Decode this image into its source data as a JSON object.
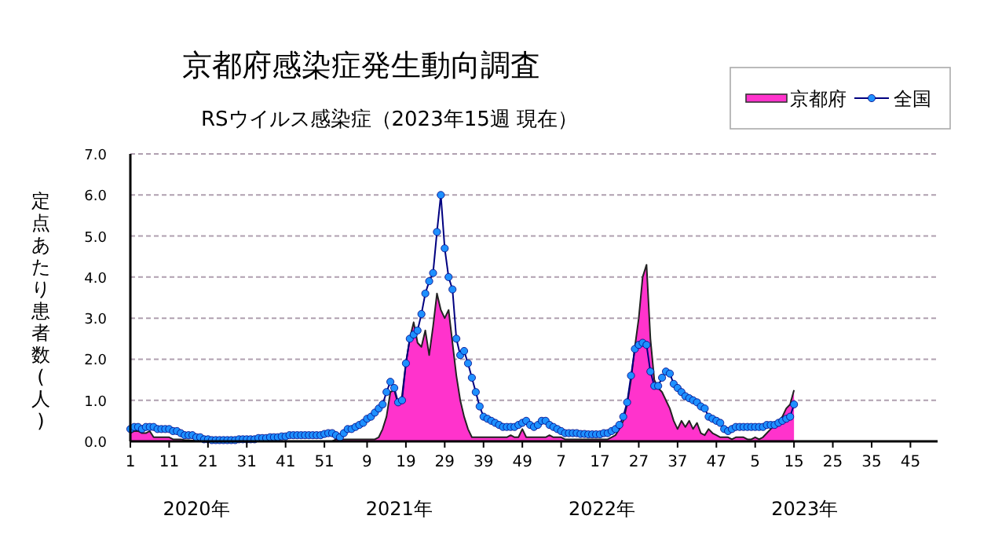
{
  "chart_data": {
    "type": "line",
    "title": "京都府感染症発生動向調査",
    "subtitle": "RSウイルス感染症（2023年15週 現在）",
    "ylabel": "定点あたり患者数(人)",
    "categories": [
      "1",
      null,
      null,
      null,
      null,
      null,
      null,
      null,
      null,
      null,
      "11",
      null,
      null,
      null,
      null,
      null,
      null,
      null,
      null,
      null,
      "21",
      null,
      null,
      null,
      null,
      null,
      null,
      null,
      null,
      null,
      "31",
      null,
      null,
      null,
      null,
      null,
      null,
      null,
      null,
      null,
      "41",
      null,
      null,
      null,
      null,
      null,
      null,
      null,
      null,
      null,
      "51",
      null,
      null,
      null,
      null,
      null,
      null,
      null,
      null,
      null,
      null,
      "9",
      null,
      null,
      null,
      null,
      null,
      null,
      null,
      null,
      null,
      "19",
      null,
      null,
      null,
      null,
      null,
      null,
      null,
      null,
      null,
      "29",
      null,
      null,
      null,
      null,
      null,
      null,
      null,
      null,
      null,
      "39",
      null,
      null,
      null,
      null,
      null,
      null,
      null,
      null,
      null,
      "49",
      null,
      null,
      null,
      null,
      null,
      null,
      null,
      null,
      null,
      "7",
      null,
      null,
      null,
      null,
      null,
      null,
      null,
      null,
      null,
      "17",
      null,
      null,
      null,
      null,
      null,
      null,
      null,
      null,
      null,
      "27",
      null,
      null,
      null,
      null,
      null,
      null,
      null,
      null,
      null,
      "37",
      null,
      null,
      null,
      null,
      null,
      null,
      null,
      null,
      null,
      "47",
      null,
      null,
      null,
      null,
      null,
      null,
      null,
      null,
      null,
      "5",
      null,
      null,
      null,
      null,
      null,
      null,
      null,
      null,
      null,
      "15",
      null,
      null,
      null,
      null,
      null,
      null,
      null,
      null,
      null,
      "25",
      null,
      null,
      null,
      null,
      null,
      null,
      null,
      null,
      null,
      "35",
      null,
      null,
      null,
      null,
      null,
      null,
      null,
      null,
      null,
      "45",
      null,
      null,
      null,
      null,
      null,
      null,
      null
    ],
    "ylim": [
      0,
      7
    ],
    "yticks": [
      {
        "value": 0,
        "label": "0.0"
      },
      {
        "value": 1,
        "label": "1.0"
      },
      {
        "value": 2,
        "label": "2.0"
      },
      {
        "value": 3,
        "label": "3.0"
      },
      {
        "value": 4,
        "label": "4.0"
      },
      {
        "value": 5,
        "label": "5.0"
      },
      {
        "value": 6,
        "label": "6.0"
      },
      {
        "value": 7,
        "label": "7.0"
      }
    ],
    "grid": "y",
    "legend": "top right",
    "annotations": [
      "2020年",
      "2021年",
      "2022年",
      "2023年"
    ],
    "series": [
      {
        "name": "京都府",
        "type": "area",
        "color": "#ff33cc",
        "values": [
          0.2,
          0.25,
          0.25,
          0.2,
          0.2,
          0.25,
          0.1,
          0.1,
          0.1,
          0.1,
          0.1,
          0.05,
          0.05,
          0.05,
          0.03,
          0.03,
          0.02,
          0.02,
          0.02,
          0,
          0,
          0,
          0,
          0,
          0,
          0,
          0,
          0,
          0,
          0,
          0,
          0,
          0,
          0,
          0,
          0,
          0,
          0,
          0,
          0,
          0,
          0,
          0,
          0,
          0,
          0,
          0,
          0,
          0,
          0,
          0,
          0,
          0,
          0.05,
          0.05,
          0.05,
          0.05,
          0.05,
          0.05,
          0.05,
          0.05,
          0.05,
          0.05,
          0.05,
          0.1,
          0.3,
          0.6,
          1.2,
          1.25,
          0.9,
          1.1,
          1.9,
          2.5,
          2.9,
          2.4,
          2.3,
          2.7,
          2.1,
          2.8,
          3.6,
          3.2,
          3.0,
          3.2,
          2.4,
          1.6,
          1.0,
          0.6,
          0.3,
          0.1,
          0.1,
          0.1,
          0.1,
          0.1,
          0.1,
          0.1,
          0.1,
          0.1,
          0.1,
          0.15,
          0.1,
          0.1,
          0.3,
          0.1,
          0.1,
          0.1,
          0.1,
          0.1,
          0.1,
          0.15,
          0.1,
          0.1,
          0.1,
          0.05,
          0.05,
          0.05,
          0.05,
          0.05,
          0.05,
          0.05,
          0.05,
          0.05,
          0.05,
          0.05,
          0.05,
          0.1,
          0.15,
          0.3,
          0.5,
          0.9,
          1.5,
          2.3,
          3.0,
          4.0,
          4.3,
          2.5,
          1.5,
          1.3,
          1.2,
          1.0,
          0.8,
          0.5,
          0.3,
          0.5,
          0.35,
          0.5,
          0.3,
          0.45,
          0.2,
          0.15,
          0.3,
          0.2,
          0.15,
          0.1,
          0.1,
          0.1,
          0.05,
          0.1,
          0.1,
          0.1,
          0.05,
          0.05,
          0.1,
          0.05,
          0.1,
          0.2,
          0.3,
          0.4,
          0.5,
          0.6,
          0.8,
          0.9,
          1.25,
          null,
          null,
          null,
          null,
          null,
          null,
          null,
          null,
          null,
          null,
          null,
          null,
          null,
          null,
          null,
          null,
          null,
          null,
          null,
          null,
          null,
          null,
          null,
          null,
          null,
          null,
          null,
          null,
          null,
          null,
          null,
          null,
          null,
          null,
          null,
          null,
          null
        ]
      },
      {
        "name": "全国",
        "color": "#000080",
        "marker": "circle",
        "values": [
          0.3,
          0.35,
          0.35,
          0.3,
          0.35,
          0.35,
          0.35,
          0.3,
          0.3,
          0.3,
          0.3,
          0.25,
          0.25,
          0.2,
          0.15,
          0.15,
          0.15,
          0.1,
          0.1,
          0.05,
          0.05,
          0.03,
          0.03,
          0.03,
          0.03,
          0.03,
          0.03,
          0.03,
          0.05,
          0.05,
          0.05,
          0.05,
          0.05,
          0.08,
          0.08,
          0.08,
          0.1,
          0.1,
          0.1,
          0.12,
          0.12,
          0.15,
          0.15,
          0.15,
          0.15,
          0.15,
          0.15,
          0.15,
          0.15,
          0.15,
          0.18,
          0.2,
          0.2,
          0.15,
          0.1,
          0.2,
          0.3,
          0.3,
          0.35,
          0.4,
          0.45,
          0.55,
          0.6,
          0.7,
          0.8,
          0.9,
          1.2,
          1.45,
          1.3,
          0.95,
          1.0,
          1.9,
          2.5,
          2.6,
          2.7,
          3.1,
          3.6,
          3.9,
          4.1,
          5.1,
          6.0,
          4.7,
          4.0,
          3.7,
          2.5,
          2.1,
          2.2,
          1.9,
          1.55,
          1.2,
          0.85,
          0.6,
          0.55,
          0.5,
          0.45,
          0.4,
          0.35,
          0.35,
          0.35,
          0.35,
          0.4,
          0.45,
          0.5,
          0.4,
          0.35,
          0.4,
          0.5,
          0.5,
          0.4,
          0.35,
          0.3,
          0.25,
          0.2,
          0.2,
          0.2,
          0.2,
          0.18,
          0.18,
          0.17,
          0.17,
          0.17,
          0.17,
          0.2,
          0.2,
          0.25,
          0.3,
          0.4,
          0.6,
          0.95,
          1.6,
          2.25,
          2.35,
          2.4,
          2.35,
          1.7,
          1.35,
          1.35,
          1.55,
          1.7,
          1.65,
          1.4,
          1.3,
          1.2,
          1.1,
          1.05,
          1.0,
          0.95,
          0.85,
          0.8,
          0.6,
          0.55,
          0.5,
          0.45,
          0.3,
          0.25,
          0.3,
          0.35,
          0.35,
          0.35,
          0.35,
          0.35,
          0.35,
          0.35,
          0.35,
          0.4,
          0.4,
          0.4,
          0.45,
          0.5,
          0.55,
          0.6,
          0.9,
          null,
          null,
          null,
          null,
          null,
          null,
          null,
          null,
          null,
          null,
          null,
          null,
          null,
          null,
          null,
          null,
          null,
          null,
          null,
          null,
          null,
          null,
          null,
          null,
          null,
          null,
          null,
          null,
          null,
          null,
          null,
          null,
          null,
          null,
          null,
          null,
          null
        ]
      }
    ]
  }
}
